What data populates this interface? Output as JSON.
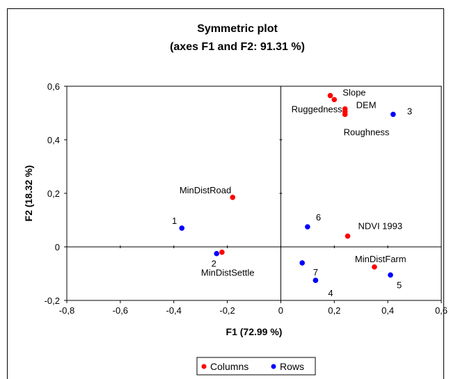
{
  "chart_data": {
    "type": "scatter",
    "title": "Symmetric plot",
    "subtitle": "(axes F1 and F2: 91.31 %)",
    "xlabel": "F1 (72.99 %)",
    "ylabel": "F2 (18.32 %)",
    "xlim": [
      -0.8,
      0.6
    ],
    "ylim": [
      -0.2,
      0.6
    ],
    "x_ticks": [
      -0.8,
      -0.6,
      -0.4,
      -0.2,
      0,
      0.2,
      0.4,
      0.6
    ],
    "y_ticks": [
      -0.2,
      0,
      0.2,
      0.4,
      0.6
    ],
    "x_tick_labels": [
      "-0,8",
      "-0,6",
      "-0,4",
      "-0,2",
      "0",
      "0,2",
      "0,4",
      "0,6"
    ],
    "y_tick_labels": [
      "-0,2",
      "0",
      "0,2",
      "0,4",
      "0,6"
    ],
    "grid": false,
    "legend_position": "bottom",
    "series": [
      {
        "name": "Columns",
        "color": "#ff0000",
        "points": [
          {
            "label": "Slope",
            "x": 0.2,
            "y": 0.55
          },
          {
            "label": "",
            "x": 0.185,
            "y": 0.565
          },
          {
            "label": "DEM",
            "x": 0.24,
            "y": 0.515
          },
          {
            "label": "Ruggedness",
            "x": 0.24,
            "y": 0.505
          },
          {
            "label": "Roughness",
            "x": 0.24,
            "y": 0.495
          },
          {
            "label": "MinDistRoad",
            "x": -0.18,
            "y": 0.185
          },
          {
            "label": "NDVI 1993",
            "x": 0.25,
            "y": 0.04
          },
          {
            "label": "MinDistFarm",
            "x": 0.35,
            "y": -0.075
          },
          {
            "label": "MinDistSettle",
            "x": -0.22,
            "y": -0.02
          }
        ]
      },
      {
        "name": "Rows",
        "color": "#0000ff",
        "points": [
          {
            "label": "3",
            "x": 0.42,
            "y": 0.495
          },
          {
            "label": "1",
            "x": -0.37,
            "y": 0.07
          },
          {
            "label": "6",
            "x": 0.1,
            "y": 0.075
          },
          {
            "label": "2",
            "x": -0.24,
            "y": -0.025
          },
          {
            "label": "",
            "x": 0.08,
            "y": -0.06
          },
          {
            "label": "7",
            "x": 0.13,
            "y": -0.125
          },
          {
            "label": "4",
            "x": 0.13,
            "y": -0.125
          },
          {
            "label": "5",
            "x": 0.41,
            "y": -0.105
          }
        ]
      }
    ]
  }
}
